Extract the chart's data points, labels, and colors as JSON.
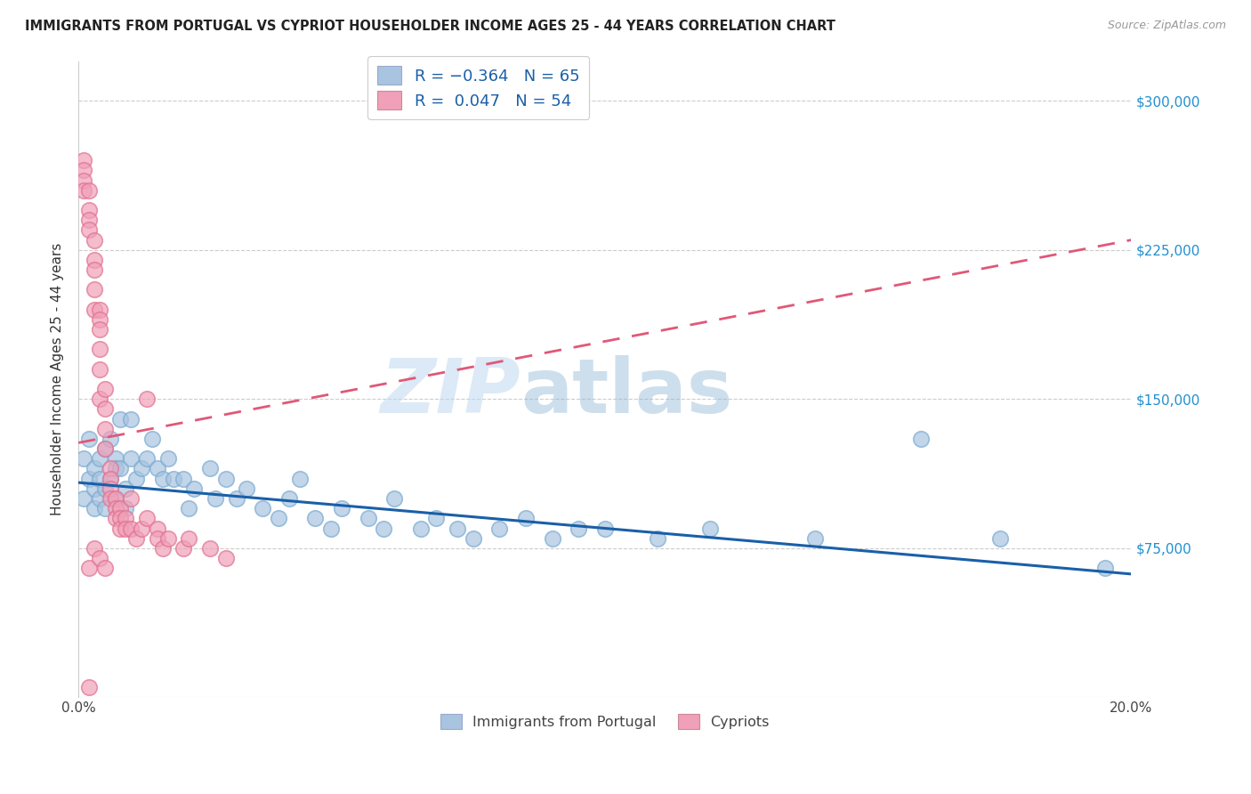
{
  "title": "IMMIGRANTS FROM PORTUGAL VS CYPRIOT HOUSEHOLDER INCOME AGES 25 - 44 YEARS CORRELATION CHART",
  "source": "Source: ZipAtlas.com",
  "ylabel": "Householder Income Ages 25 - 44 years",
  "watermark_zip": "ZIP",
  "watermark_atlas": "atlas",
  "xlim": [
    0.0,
    0.2
  ],
  "ylim": [
    0,
    320000
  ],
  "yticks": [
    0,
    75000,
    150000,
    225000,
    300000
  ],
  "xticks": [
    0.0,
    0.05,
    0.1,
    0.15,
    0.2
  ],
  "blue_color": "#a8c4e0",
  "blue_edge_color": "#7aaad0",
  "pink_color": "#f0a0b8",
  "pink_edge_color": "#e07090",
  "blue_line_color": "#1a5fa8",
  "pink_line_color": "#e05878",
  "background_color": "#ffffff",
  "grid_color": "#cccccc",
  "blue_scatter_x": [
    0.001,
    0.001,
    0.002,
    0.002,
    0.003,
    0.003,
    0.003,
    0.004,
    0.004,
    0.004,
    0.005,
    0.005,
    0.005,
    0.006,
    0.006,
    0.007,
    0.007,
    0.007,
    0.008,
    0.008,
    0.009,
    0.009,
    0.01,
    0.01,
    0.011,
    0.012,
    0.013,
    0.014,
    0.015,
    0.016,
    0.017,
    0.018,
    0.02,
    0.021,
    0.022,
    0.025,
    0.026,
    0.028,
    0.03,
    0.032,
    0.035,
    0.038,
    0.04,
    0.042,
    0.045,
    0.048,
    0.05,
    0.055,
    0.058,
    0.06,
    0.065,
    0.068,
    0.072,
    0.075,
    0.08,
    0.085,
    0.09,
    0.095,
    0.1,
    0.11,
    0.12,
    0.14,
    0.16,
    0.175,
    0.195
  ],
  "blue_scatter_y": [
    120000,
    100000,
    130000,
    110000,
    115000,
    105000,
    95000,
    120000,
    110000,
    100000,
    125000,
    105000,
    95000,
    130000,
    110000,
    120000,
    100000,
    115000,
    140000,
    115000,
    105000,
    95000,
    140000,
    120000,
    110000,
    115000,
    120000,
    130000,
    115000,
    110000,
    120000,
    110000,
    110000,
    95000,
    105000,
    115000,
    100000,
    110000,
    100000,
    105000,
    95000,
    90000,
    100000,
    110000,
    90000,
    85000,
    95000,
    90000,
    85000,
    100000,
    85000,
    90000,
    85000,
    80000,
    85000,
    90000,
    80000,
    85000,
    85000,
    80000,
    85000,
    80000,
    130000,
    80000,
    65000
  ],
  "pink_scatter_x": [
    0.001,
    0.001,
    0.001,
    0.001,
    0.002,
    0.002,
    0.002,
    0.002,
    0.002,
    0.003,
    0.003,
    0.003,
    0.003,
    0.003,
    0.004,
    0.004,
    0.004,
    0.004,
    0.004,
    0.004,
    0.005,
    0.005,
    0.005,
    0.005,
    0.006,
    0.006,
    0.006,
    0.006,
    0.007,
    0.007,
    0.007,
    0.008,
    0.008,
    0.008,
    0.009,
    0.009,
    0.01,
    0.01,
    0.011,
    0.012,
    0.013,
    0.013,
    0.015,
    0.015,
    0.016,
    0.017,
    0.02,
    0.021,
    0.025,
    0.028,
    0.002,
    0.003,
    0.004,
    0.005
  ],
  "pink_scatter_y": [
    270000,
    265000,
    260000,
    255000,
    255000,
    245000,
    240000,
    235000,
    5000,
    230000,
    220000,
    215000,
    205000,
    195000,
    195000,
    190000,
    185000,
    175000,
    165000,
    150000,
    155000,
    145000,
    135000,
    125000,
    115000,
    110000,
    105000,
    100000,
    100000,
    95000,
    90000,
    95000,
    90000,
    85000,
    90000,
    85000,
    100000,
    85000,
    80000,
    85000,
    90000,
    150000,
    85000,
    80000,
    75000,
    80000,
    75000,
    80000,
    75000,
    70000,
    65000,
    75000,
    70000,
    65000
  ],
  "blue_line_x0": 0.0,
  "blue_line_y0": 108000,
  "blue_line_x1": 0.2,
  "blue_line_y1": 62000,
  "pink_line_x0": 0.0,
  "pink_line_y0": 128000,
  "pink_line_x1": 0.2,
  "pink_line_y1": 230000
}
